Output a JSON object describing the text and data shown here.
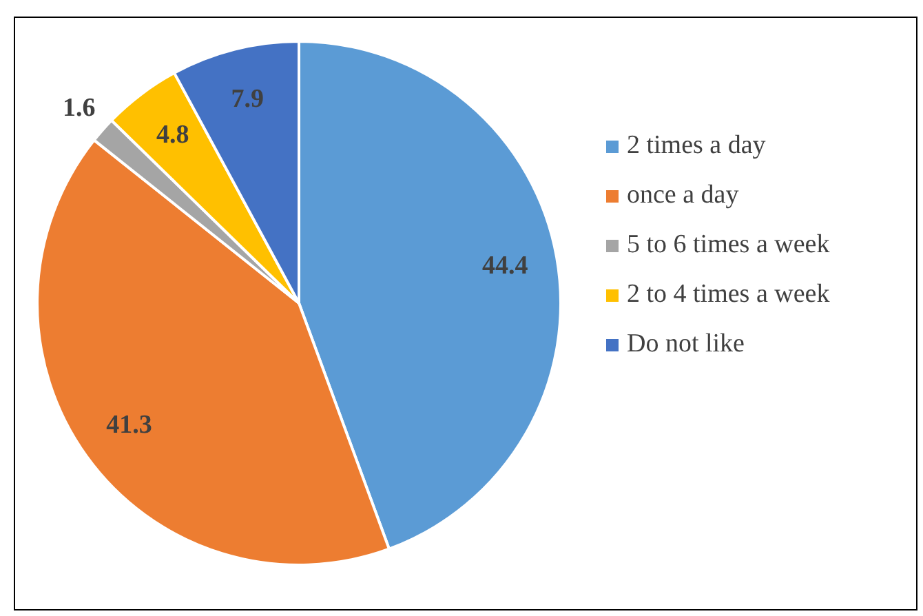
{
  "chart_data": {
    "type": "pie",
    "categories": [
      "2 times a day",
      "once a day",
      "5 to 6 times a week",
      "2 to 4 times a week",
      "Do not like"
    ],
    "values": [
      44.4,
      41.3,
      1.6,
      4.8,
      7.9
    ],
    "colors": [
      "#5b9bd5",
      "#ed7d31",
      "#a5a5a5",
      "#ffc000",
      "#4472c4"
    ],
    "data_labels": true,
    "legend": "right"
  }
}
